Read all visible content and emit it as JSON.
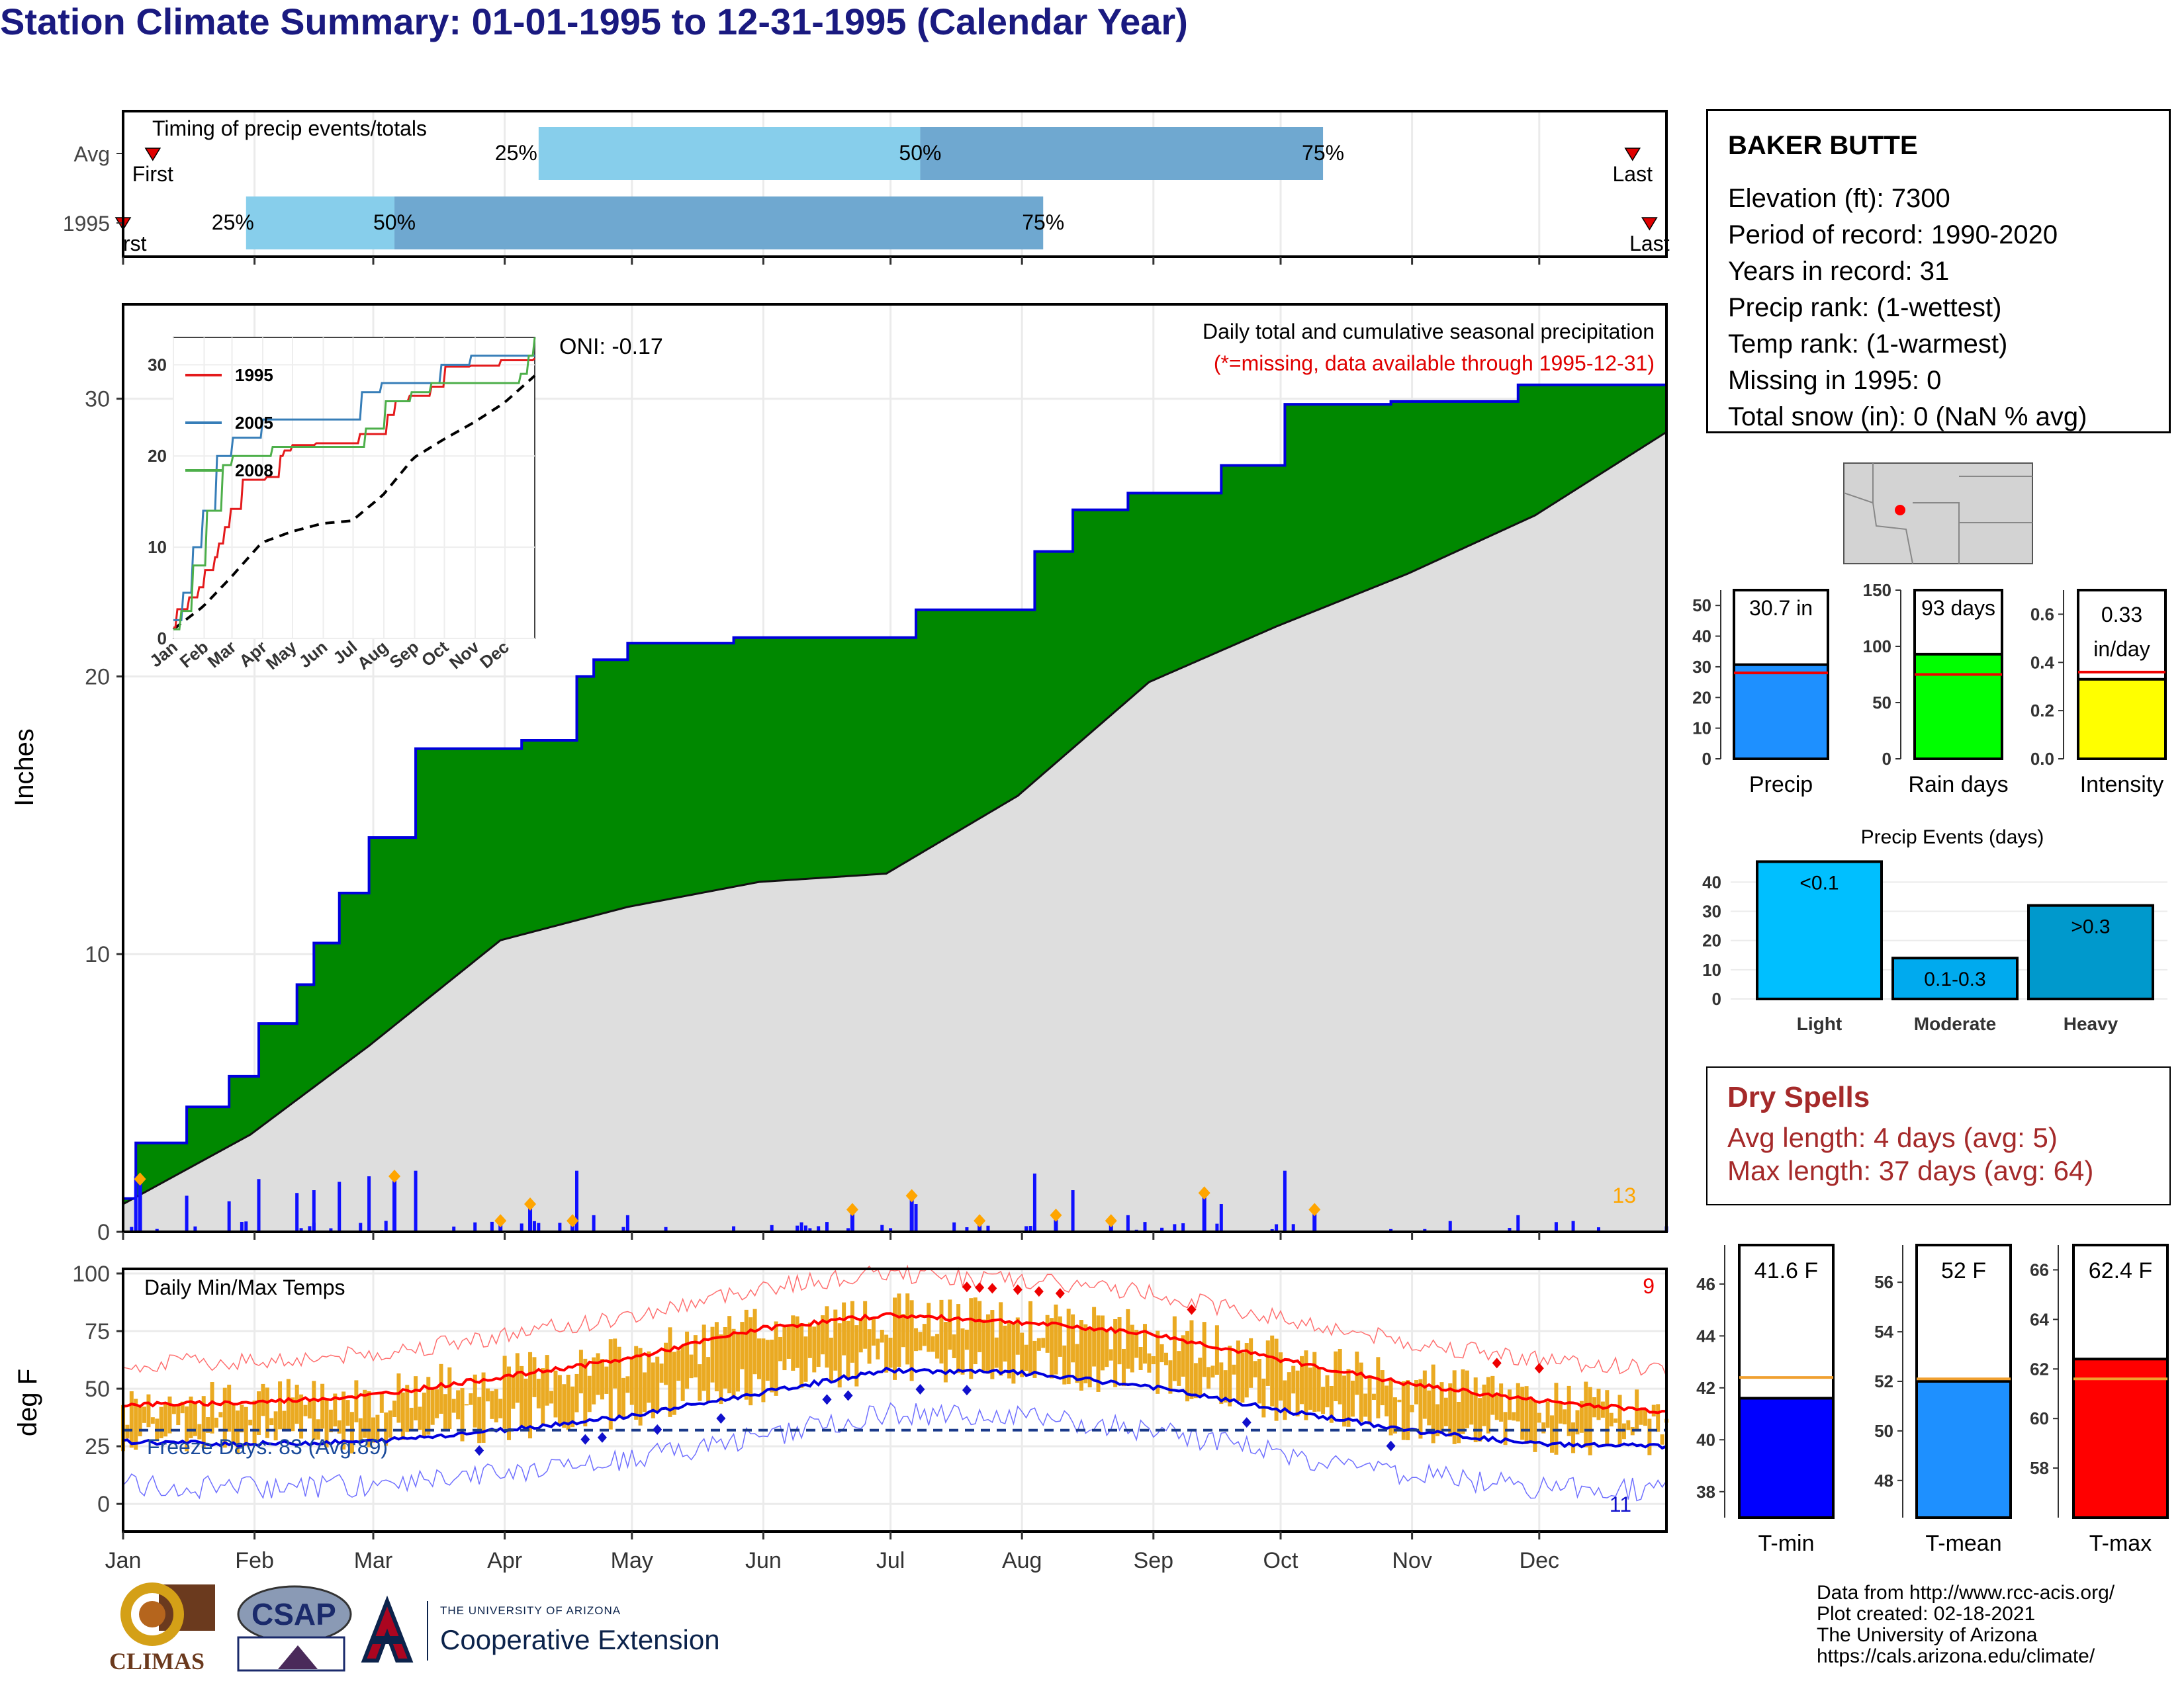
{
  "title": "Station Climate Summary: 01-01-1995 to 12-31-1995 (Calendar Year)",
  "station": {
    "name": "BAKER BUTTE",
    "lines": [
      "Elevation (ft): 7300",
      "Period of record: 1990-2020",
      "Years in record: 31",
      "Precip rank:  (1-wettest)",
      "Temp rank:  (1-warmest)",
      "Missing in 1995: 0",
      "Total snow (in): 0 (NaN % avg)"
    ]
  },
  "timing": {
    "title": "Timing of precip events/totals",
    "rows": [
      "Avg",
      "1995"
    ],
    "first_label": "First",
    "first_label_1995": "rst",
    "last_label": "Last",
    "pct_labels": [
      "25%",
      "50%",
      "75%"
    ]
  },
  "months": [
    "Jan",
    "Feb",
    "Mar",
    "Apr",
    "May",
    "Jun",
    "Jul",
    "Aug",
    "Sep",
    "Oct",
    "Nov",
    "Dec"
  ],
  "precip_panel": {
    "ylabel": "Inches",
    "title": "Daily total and cumulative seasonal precipitation",
    "subtitle": "(*=missing, data available through 1995-12-31)",
    "oni": "ONI: -0.17",
    "count_label": "13"
  },
  "inset": {
    "months": [
      "Jan",
      "Feb",
      "Mar",
      "Apr",
      "May",
      "Jun",
      "Jul",
      "Aug",
      "Sep",
      "Oct",
      "Nov",
      "Dec"
    ],
    "legend": [
      "1995",
      "2005",
      "2008"
    ],
    "colors": [
      "#e41a1c",
      "#377eb8",
      "#4daf4a"
    ]
  },
  "temp_panel": {
    "ylabel": "deg F",
    "title": "Daily Min/Max Temps",
    "freeze_label": "Freeze Days: 83 (Avg:89)",
    "hot_count": "9",
    "cold_count": "11"
  },
  "mini_bars": {
    "precip": {
      "label": "Precip",
      "value_label": "30.7 in",
      "value": 30.7,
      "avg": 28,
      "ylim": [
        0,
        55
      ],
      "ticks": [
        0,
        10,
        20,
        30,
        40,
        50
      ],
      "color": "#1e90ff"
    },
    "raindays": {
      "label": "Rain days",
      "value_label": "93 days",
      "value": 93,
      "avg": 75,
      "ylim": [
        0,
        150
      ],
      "ticks": [
        0,
        50,
        100,
        150
      ],
      "color": "#00ff00"
    },
    "intensity": {
      "label": "Intensity",
      "value_label1": "0.33",
      "value_label2": "in/day",
      "value": 0.33,
      "avg": 0.36,
      "ylim": [
        0,
        0.7
      ],
      "ticks": [
        "0.0",
        "0.2",
        "0.4",
        "0.6"
      ],
      "color": "#ffff00"
    }
  },
  "events": {
    "title": "Precip Events (days)",
    "categories": [
      "Light",
      "Moderate",
      "Heavy"
    ],
    "labels": [
      "<0.1",
      "0.1-0.3",
      ">0.3"
    ],
    "values": [
      47,
      14,
      32
    ],
    "colors": [
      "#00bfff",
      "#00aaee",
      "#0099cc"
    ],
    "ticks": [
      0,
      10,
      20,
      30,
      40
    ]
  },
  "dry_spells": {
    "title": "Dry Spells",
    "avg_line": "Avg length: 4 days (avg: 5)",
    "max_line": "Max length: 37 days (avg: 64)"
  },
  "temp_bars": {
    "tmin": {
      "label": "T-min",
      "value_label": "41.6 F",
      "value": 41.6,
      "avg": 42.4,
      "ylim": [
        37,
        47.5
      ],
      "ticks": [
        38,
        40,
        42,
        44,
        46
      ],
      "color": "#0000ff"
    },
    "tmean": {
      "label": "T-mean",
      "value_label": "52 F",
      "value": 52,
      "avg": 52.1,
      "ylim": [
        46.5,
        57.5
      ],
      "ticks": [
        48,
        50,
        52,
        54,
        56
      ],
      "color": "#1e90ff"
    },
    "tmax": {
      "label": "T-max",
      "value_label": "62.4 F",
      "value": 62.4,
      "avg": 61.6,
      "ylim": [
        56,
        67
      ],
      "ticks": [
        58,
        60,
        62,
        64,
        66
      ],
      "color": "#ff0000"
    }
  },
  "credits": [
    "Data from http://www.rcc-acis.org/",
    "Plot created: 02-18-2021",
    "The University of Arizona",
    "https://cals.arizona.edu/climate/"
  ],
  "logos": {
    "climas": "CLIMAS",
    "csap": "CSAP",
    "ua_small": "THE UNIVERSITY OF ARIZONA",
    "ua_big": "Cooperative Extension"
  },
  "chart_data": [
    {
      "type": "bar",
      "title": "Timing of precip events/totals",
      "rows": [
        "Avg",
        "1995"
      ],
      "series": [
        {
          "name": "Avg",
          "first_doy": 8,
          "p25_doy": 99,
          "p50_doy": 189,
          "p75_doy": 284,
          "last_doy": 357
        },
        {
          "name": "1995",
          "first_doy": 1,
          "p25_doy": 30,
          "p50_doy": 65,
          "p75_doy": 218,
          "last_doy": 361
        }
      ]
    },
    {
      "type": "area",
      "title": "Daily total and cumulative seasonal precipitation",
      "ylabel": "Inches",
      "ylim": [
        0,
        33
      ],
      "cumulative_1995": {
        "day": [
          1,
          4,
          16,
          26,
          33,
          42,
          46,
          52,
          59,
          70,
          78,
          95,
          108,
          112,
          120,
          145,
          185,
          188,
          212,
          216,
          225,
          238,
          260,
          275,
          300,
          330,
          365
        ],
        "value": [
          1.2,
          3.2,
          4.5,
          5.6,
          7.5,
          8.9,
          10.4,
          12.2,
          14.2,
          17.4,
          17.4,
          17.7,
          20.0,
          20.6,
          21.2,
          21.4,
          21.4,
          22.4,
          22.4,
          24.5,
          26.0,
          26.6,
          27.6,
          29.8,
          29.9,
          30.5,
          30.7
        ]
      },
      "average": {
        "day": [
          1,
          31,
          59,
          90,
          120,
          151,
          181,
          212,
          243,
          273,
          304,
          334,
          365
        ],
        "value": [
          1,
          3.5,
          6.7,
          10.5,
          11.7,
          12.6,
          12.9,
          15.7,
          19.8,
          21.8,
          23.7,
          25.8,
          28.8
        ]
      },
      "daily_highlighted_inches": [
        1.9,
        2.0,
        0.4,
        1.0,
        0.4,
        0.8,
        1.3,
        0.8,
        0.4,
        0.6,
        0.4,
        1.4
      ]
    },
    {
      "type": "line",
      "title": "Daily Min/Max Temps",
      "ylabel": "deg F",
      "ylim": [
        -10,
        100
      ],
      "normal_max": {
        "day": [
          1,
          31,
          59,
          90,
          120,
          151,
          181,
          212,
          243,
          273,
          304,
          334,
          365
        ],
        "value": [
          43,
          44,
          47,
          55,
          63,
          76,
          82,
          79,
          74,
          63,
          52,
          45,
          40
        ]
      },
      "normal_min": {
        "day": [
          1,
          31,
          59,
          90,
          120,
          151,
          181,
          212,
          243,
          273,
          304,
          334,
          365
        ],
        "value": [
          27,
          26,
          27,
          32,
          38,
          48,
          58,
          57,
          51,
          41,
          32,
          26,
          25
        ]
      },
      "freeze_line": 32
    }
  ]
}
